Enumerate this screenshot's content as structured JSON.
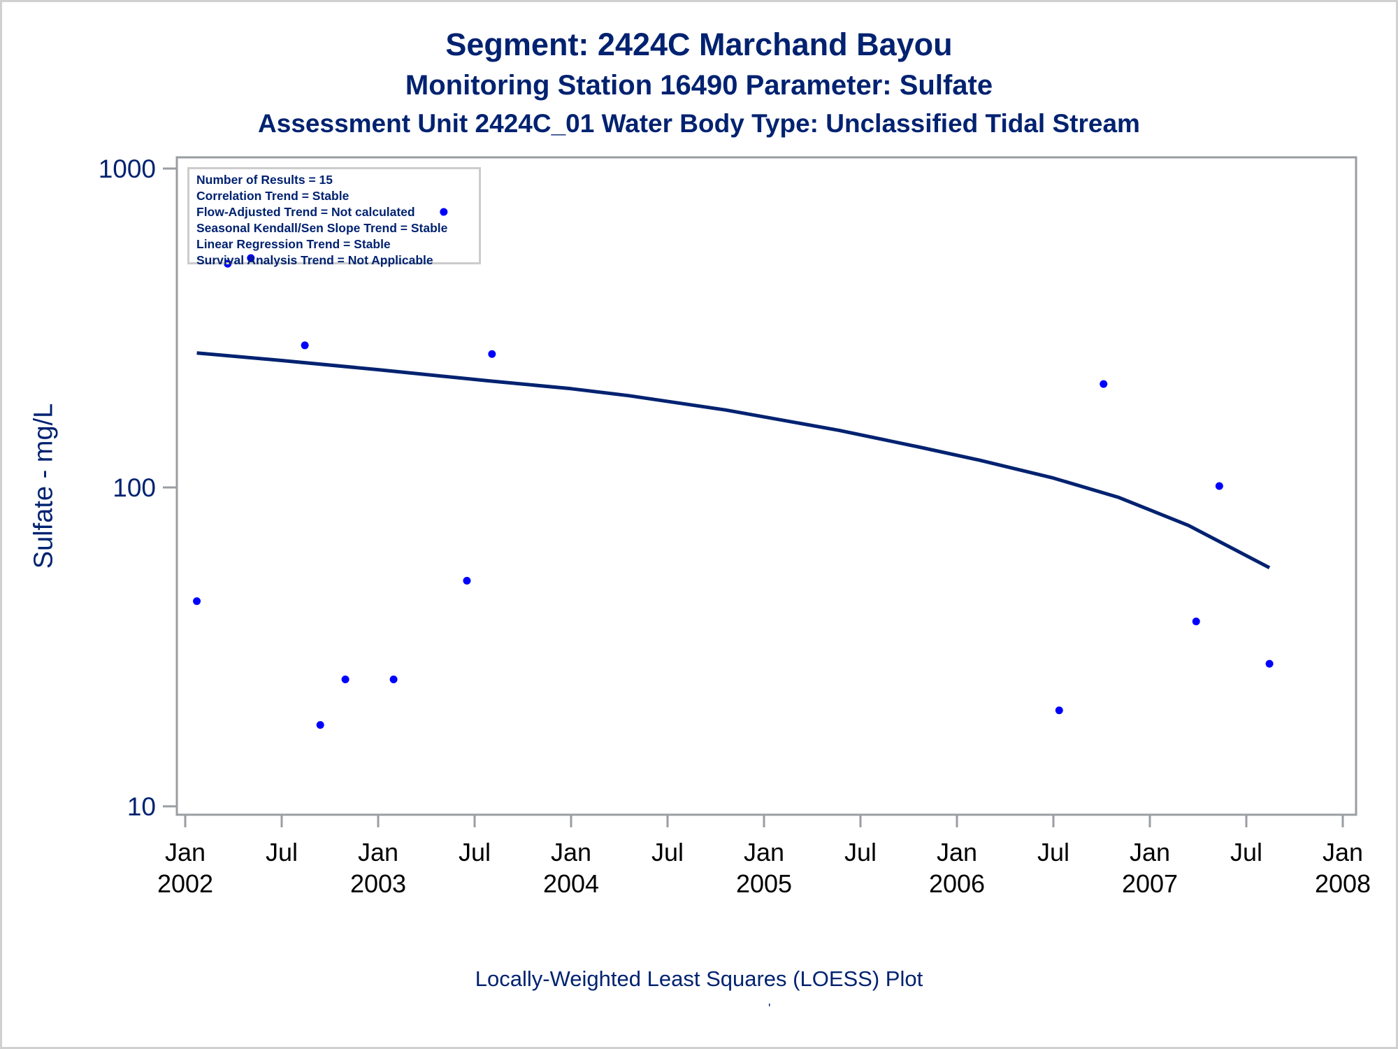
{
  "titles": {
    "line1": "Segment: 2424C  Marchand Bayou",
    "line2": "Monitoring Station 16490 Parameter: Sulfate",
    "line3": "Assessment Unit 2424C_01   Water Body Type: Unclassified Tidal Stream"
  },
  "legend_box": {
    "lines": [
      "Number of Results = 15",
      "Correlation Trend = Stable",
      "Flow-Adjusted Trend = Not calculated",
      "Seasonal Kendall/Sen Slope Trend = Stable",
      "Linear Regression Trend = Stable",
      "Survival Analysis Trend = Not Applicable"
    ]
  },
  "caption": "Locally-Weighted Least Squares (LOESS) Plot",
  "caption_mark": "'",
  "colors": {
    "text": "#002270",
    "points": "#0000ff",
    "loess": "#002270",
    "frame": "#9a9da2"
  },
  "chart_data": {
    "type": "scatter",
    "title": "Segment: 2424C  Marchand Bayou",
    "subtitle": "Monitoring Station 16490 Parameter: Sulfate",
    "xlabel": "",
    "ylabel": "Sulfate - mg/L",
    "yscale": "log",
    "ylim": [
      10,
      1000
    ],
    "xlim": [
      2002.0,
      2008.0
    ],
    "grid": false,
    "y_ticks": [
      {
        "value": 1000,
        "label": "1000"
      },
      {
        "value": 100,
        "label": "100"
      },
      {
        "value": 10,
        "label": "10"
      }
    ],
    "x_ticks": [
      {
        "value": 2002.0,
        "label1": "Jan",
        "label2": "2002"
      },
      {
        "value": 2002.5,
        "label1": "Jul",
        "label2": ""
      },
      {
        "value": 2003.0,
        "label1": "Jan",
        "label2": "2003"
      },
      {
        "value": 2003.5,
        "label1": "Jul",
        "label2": ""
      },
      {
        "value": 2004.0,
        "label1": "Jan",
        "label2": "2004"
      },
      {
        "value": 2004.5,
        "label1": "Jul",
        "label2": ""
      },
      {
        "value": 2005.0,
        "label1": "Jan",
        "label2": "2005"
      },
      {
        "value": 2005.5,
        "label1": "Jul",
        "label2": ""
      },
      {
        "value": 2006.0,
        "label1": "Jan",
        "label2": "2006"
      },
      {
        "value": 2006.5,
        "label1": "Jul",
        "label2": ""
      },
      {
        "value": 2007.0,
        "label1": "Jan",
        "label2": "2007"
      },
      {
        "value": 2007.5,
        "label1": "Jul",
        "label2": ""
      },
      {
        "value": 2008.0,
        "label1": "Jan",
        "label2": "2008"
      }
    ],
    "series": [
      {
        "name": "Sulfate results",
        "type": "scatter",
        "points": [
          {
            "x": 2002.06,
            "y": 44
          },
          {
            "x": 2002.22,
            "y": 503
          },
          {
            "x": 2002.34,
            "y": 524
          },
          {
            "x": 2002.62,
            "y": 279
          },
          {
            "x": 2002.7,
            "y": 18
          },
          {
            "x": 2002.83,
            "y": 25
          },
          {
            "x": 2003.08,
            "y": 25
          },
          {
            "x": 2003.34,
            "y": 731
          },
          {
            "x": 2003.46,
            "y": 51
          },
          {
            "x": 2003.59,
            "y": 262
          },
          {
            "x": 2006.53,
            "y": 20
          },
          {
            "x": 2006.76,
            "y": 211
          },
          {
            "x": 2007.24,
            "y": 38
          },
          {
            "x": 2007.36,
            "y": 101
          },
          {
            "x": 2007.62,
            "y": 28
          }
        ]
      },
      {
        "name": "LOESS fit",
        "type": "line",
        "points": [
          {
            "x": 2002.06,
            "y": 264
          },
          {
            "x": 2002.5,
            "y": 250
          },
          {
            "x": 2003.0,
            "y": 234
          },
          {
            "x": 2003.57,
            "y": 216
          },
          {
            "x": 2004.0,
            "y": 204
          },
          {
            "x": 2004.3,
            "y": 194
          },
          {
            "x": 2004.8,
            "y": 175
          },
          {
            "x": 2005.39,
            "y": 151
          },
          {
            "x": 2005.8,
            "y": 134
          },
          {
            "x": 2006.11,
            "y": 122
          },
          {
            "x": 2006.5,
            "y": 107
          },
          {
            "x": 2006.84,
            "y": 93
          },
          {
            "x": 2007.2,
            "y": 76
          },
          {
            "x": 2007.62,
            "y": 56
          }
        ]
      }
    ]
  }
}
